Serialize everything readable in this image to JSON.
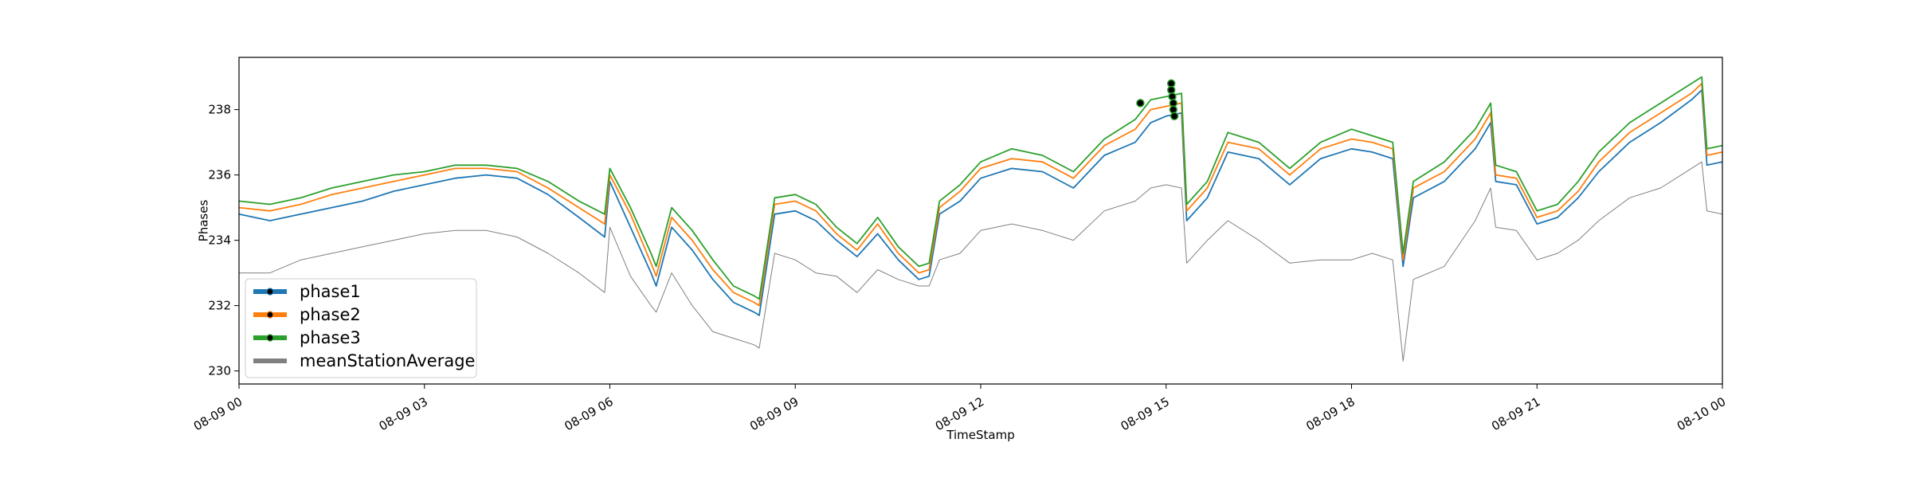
{
  "chart_data": {
    "type": "line",
    "xlabel": "TimeStamp",
    "ylabel": "Phases",
    "x_tick_labels": [
      "08-09 00",
      "08-09 03",
      "08-09 06",
      "08-09 09",
      "08-09 12",
      "08-09 15",
      "08-09 18",
      "08-09 21",
      "08-10 00"
    ],
    "y_ticks": [
      230,
      232,
      234,
      236,
      238
    ],
    "xlim": [
      "08-09 00:00",
      "08-10 00:00"
    ],
    "ylim": [
      229.6,
      239.6
    ],
    "grid": false,
    "legend_position": "lower-left",
    "x": [
      "08-09 00:00",
      "08-09 00:30",
      "08-09 01:00",
      "08-09 01:30",
      "08-09 02:00",
      "08-09 02:30",
      "08-09 03:00",
      "08-09 03:30",
      "08-09 04:00",
      "08-09 04:30",
      "08-09 05:00",
      "08-09 05:30",
      "08-09 05:55",
      "08-09 06:00",
      "08-09 06:20",
      "08-09 06:40",
      "08-09 06:45",
      "08-09 07:00",
      "08-09 07:20",
      "08-09 07:40",
      "08-09 08:00",
      "08-09 08:20",
      "08-09 08:25",
      "08-09 08:40",
      "08-09 09:00",
      "08-09 09:20",
      "08-09 09:40",
      "08-09 10:00",
      "08-09 10:20",
      "08-09 10:40",
      "08-09 11:00",
      "08-09 11:10",
      "08-09 11:20",
      "08-09 11:40",
      "08-09 12:00",
      "08-09 12:30",
      "08-09 13:00",
      "08-09 13:30",
      "08-09 14:00",
      "08-09 14:30",
      "08-09 14:45",
      "08-09 15:00",
      "08-09 15:15",
      "08-09 15:20",
      "08-09 15:40",
      "08-09 16:00",
      "08-09 16:30",
      "08-09 17:00",
      "08-09 17:30",
      "08-09 18:00",
      "08-09 18:20",
      "08-09 18:40",
      "08-09 18:50",
      "08-09 19:00",
      "08-09 19:30",
      "08-09 20:00",
      "08-09 20:15",
      "08-09 20:20",
      "08-09 20:40",
      "08-09 21:00",
      "08-09 21:20",
      "08-09 21:40",
      "08-09 22:00",
      "08-09 22:30",
      "08-09 23:00",
      "08-09 23:30",
      "08-09 23:40",
      "08-09 23:45",
      "08-10 00:00"
    ],
    "series": [
      {
        "name": "phase1",
        "color": "#1f77b4",
        "values": [
          234.8,
          234.6,
          234.8,
          235.0,
          235.2,
          235.5,
          235.7,
          235.9,
          236.0,
          235.9,
          235.4,
          234.7,
          234.1,
          235.8,
          234.4,
          233.0,
          232.6,
          234.4,
          233.7,
          232.8,
          232.1,
          231.8,
          231.7,
          234.8,
          234.9,
          234.6,
          234.0,
          233.5,
          234.2,
          233.4,
          232.8,
          232.9,
          234.8,
          235.2,
          235.9,
          236.2,
          236.1,
          235.6,
          236.6,
          237.0,
          237.6,
          237.8,
          237.9,
          234.6,
          235.3,
          236.7,
          236.5,
          235.7,
          236.5,
          236.8,
          236.7,
          236.5,
          233.2,
          235.3,
          235.8,
          236.8,
          237.6,
          235.8,
          235.7,
          234.5,
          234.7,
          235.3,
          236.1,
          237.0,
          237.6,
          238.3,
          238.6,
          236.3,
          236.4
        ]
      },
      {
        "name": "phase2",
        "color": "#ff7f0e",
        "values": [
          235.0,
          234.9,
          235.1,
          235.4,
          235.6,
          235.8,
          236.0,
          236.2,
          236.2,
          236.1,
          235.6,
          235.0,
          234.5,
          236.0,
          234.8,
          233.3,
          232.9,
          234.7,
          234.0,
          233.1,
          232.4,
          232.1,
          232.0,
          235.1,
          235.2,
          234.9,
          234.2,
          233.7,
          234.5,
          233.6,
          233.0,
          233.1,
          235.0,
          235.5,
          236.2,
          236.5,
          236.4,
          235.9,
          236.9,
          237.4,
          238.0,
          238.1,
          238.2,
          234.9,
          235.6,
          237.0,
          236.8,
          236.0,
          236.8,
          237.1,
          237.0,
          236.8,
          233.4,
          235.6,
          236.1,
          237.1,
          237.9,
          236.0,
          235.9,
          234.7,
          234.9,
          235.5,
          236.4,
          237.3,
          237.9,
          238.5,
          238.8,
          236.6,
          236.7
        ]
      },
      {
        "name": "phase3",
        "color": "#2ca02c",
        "values": [
          235.2,
          235.1,
          235.3,
          235.6,
          235.8,
          236.0,
          236.1,
          236.3,
          236.3,
          236.2,
          235.8,
          235.2,
          234.8,
          236.2,
          235.0,
          233.6,
          233.2,
          235.0,
          234.3,
          233.4,
          232.6,
          232.3,
          232.2,
          235.3,
          235.4,
          235.1,
          234.4,
          233.9,
          234.7,
          233.8,
          233.2,
          233.3,
          235.2,
          235.7,
          236.4,
          236.8,
          236.6,
          236.1,
          237.1,
          237.7,
          238.3,
          238.4,
          238.5,
          235.1,
          235.8,
          237.3,
          237.0,
          236.2,
          237.0,
          237.4,
          237.2,
          237.0,
          233.6,
          235.8,
          236.4,
          237.4,
          238.2,
          236.3,
          236.1,
          234.9,
          235.1,
          235.8,
          236.7,
          237.6,
          238.2,
          238.8,
          239.0,
          236.8,
          236.9
        ]
      },
      {
        "name": "meanStationAverage",
        "color": "#808080",
        "values": [
          233.0,
          233.0,
          233.4,
          233.6,
          233.8,
          234.0,
          234.2,
          234.3,
          234.3,
          234.1,
          233.6,
          233.0,
          232.4,
          234.4,
          232.9,
          232.0,
          231.8,
          233.0,
          232.0,
          231.2,
          231.0,
          230.8,
          230.7,
          233.6,
          233.4,
          233.0,
          232.9,
          232.4,
          233.1,
          232.8,
          232.6,
          232.6,
          233.4,
          233.6,
          234.3,
          234.5,
          234.3,
          234.0,
          234.9,
          235.2,
          235.6,
          235.7,
          235.6,
          233.3,
          234.0,
          234.6,
          234.0,
          233.3,
          233.4,
          233.4,
          233.6,
          233.4,
          230.3,
          232.8,
          233.2,
          234.6,
          235.6,
          234.4,
          234.3,
          233.4,
          233.6,
          234.0,
          234.6,
          235.3,
          235.6,
          236.2,
          236.4,
          234.9,
          234.8
        ]
      }
    ],
    "markers": [
      {
        "x": "08-09 14:35",
        "y": 238.2
      },
      {
        "x": "08-09 15:05",
        "y": 238.8
      },
      {
        "x": "08-09 15:05",
        "y": 238.6
      },
      {
        "x": "08-09 15:06",
        "y": 238.4
      },
      {
        "x": "08-09 15:07",
        "y": 238.2
      },
      {
        "x": "08-09 15:07",
        "y": 238.0
      },
      {
        "x": "08-09 15:08",
        "y": 237.8
      }
    ]
  }
}
